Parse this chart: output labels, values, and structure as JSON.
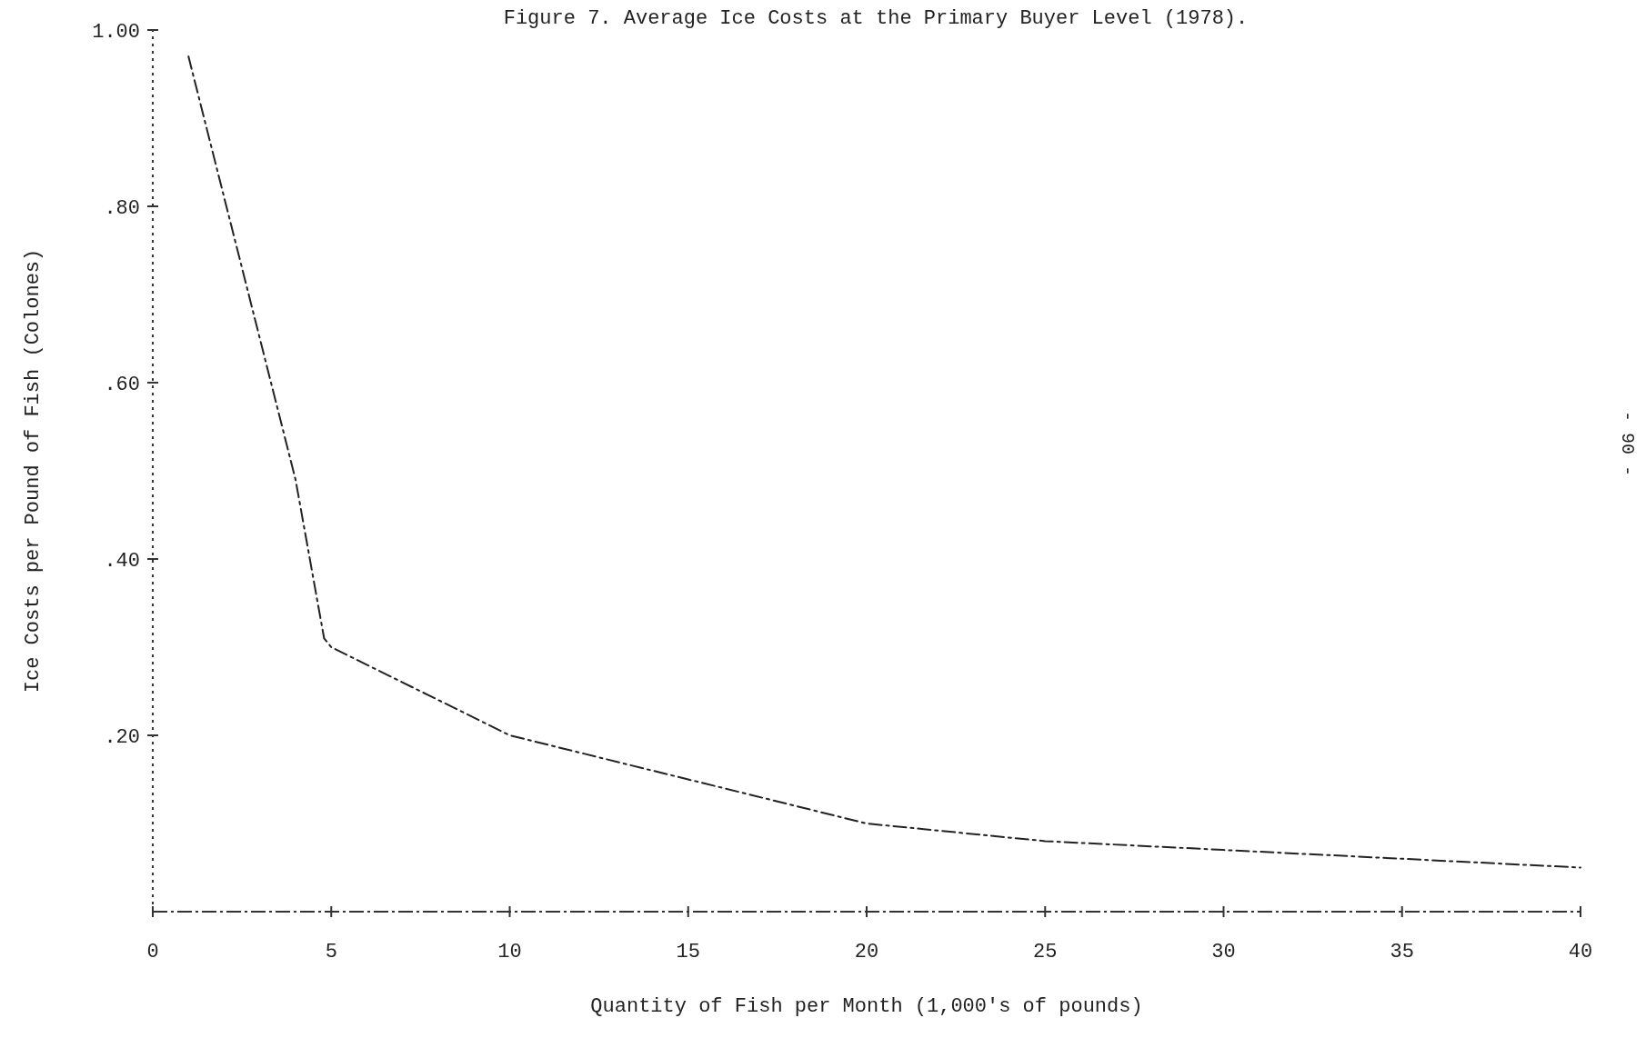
{
  "chart_data": {
    "type": "line",
    "title": "Figure 7.  Average Ice Costs at the Primary Buyer Level (1978).",
    "xlabel": "Quantity of Fish per Month (1,000's of pounds)",
    "ylabel": "Ice Costs per Pound of Fish (Colones)",
    "x": [
      1,
      3,
      4,
      4.8,
      5,
      10,
      15,
      20,
      25,
      30,
      35,
      40
    ],
    "series": [
      {
        "color": "#222222",
        "values": [
          0.97,
          0.65,
          0.49,
          0.31,
          0.3,
          0.2,
          0.15,
          0.1,
          0.08,
          0.07,
          0.06,
          0.05
        ]
      }
    ],
    "xlim": [
      0,
      40
    ],
    "xticks": [
      0,
      5,
      10,
      15,
      20,
      25,
      30,
      35,
      40
    ],
    "ylim": [
      0,
      1
    ],
    "yticks": [
      {
        "value": 0.2,
        "label": ".20"
      },
      {
        "value": 0.4,
        "label": ".40"
      },
      {
        "value": 0.6,
        "label": ".60"
      },
      {
        "value": 0.8,
        "label": ".80"
      },
      {
        "value": 1,
        "label": "1.00"
      }
    ],
    "line_style": "dashed",
    "marker": "none",
    "grid": false,
    "annotations": [
      "- 90 -"
    ]
  }
}
